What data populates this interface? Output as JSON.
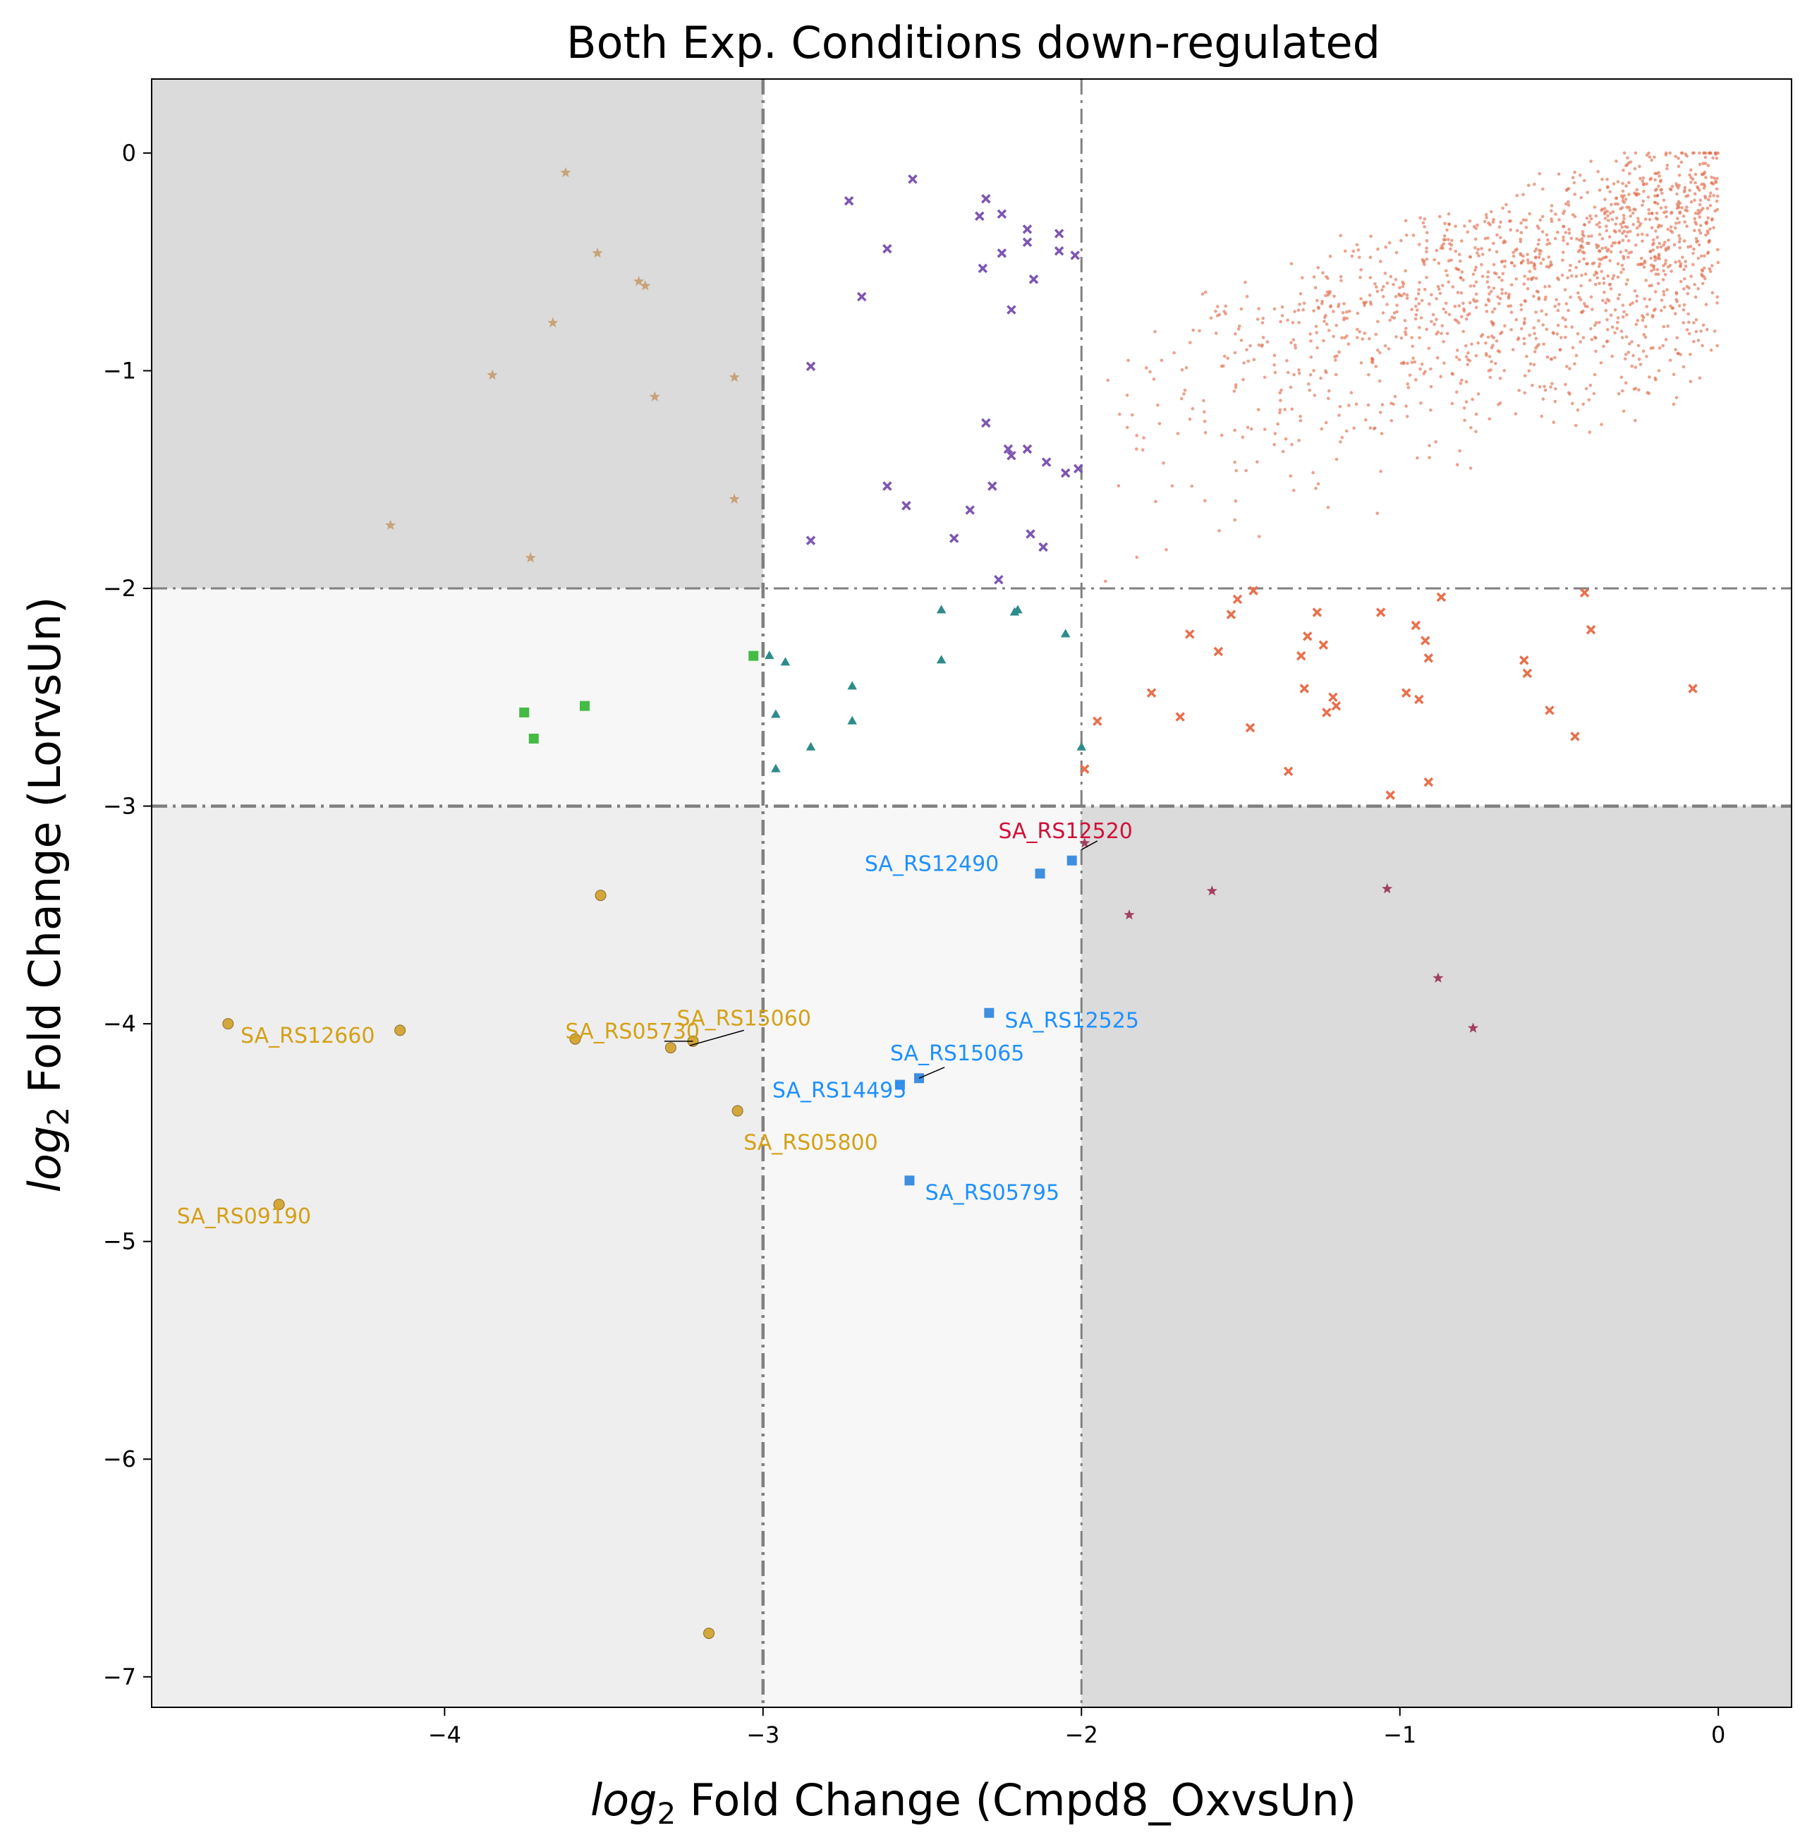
{
  "chart_data": {
    "type": "scatter",
    "title": "Both Exp. Conditions down-regulated",
    "xlabel_prefix": "log",
    "xlabel_sub": "2",
    "xlabel_rest": " Fold Change (Cmpd8_OxvsUn)",
    "ylabel_prefix": "log",
    "ylabel_sub": "2",
    "ylabel_rest": " Fold Change (LorvsUn)",
    "xlim": [
      -4.92,
      0.23
    ],
    "ylim": [
      -7.14,
      0.34
    ],
    "xticks": [
      -4,
      -3,
      -2,
      -1,
      0
    ],
    "yticks": [
      0,
      -1,
      -2,
      -3,
      -4,
      -5,
      -6,
      -7
    ],
    "grid": false,
    "legend": "none",
    "thresholds": {
      "x_outer": -3,
      "x_inner": -2,
      "y_outer": -3,
      "y_inner": -2
    },
    "colors": {
      "region_dark": "#dbdbdb",
      "region_mid": "#eeeeee",
      "region_light": "#f7f7f7",
      "threshold_line": "#808080",
      "background_dots": "#e07050",
      "x_markers": "#e8704c",
      "purple_x": "#7d55b2",
      "teal_tri": "#2e8b8b",
      "green_sq": "#44bb44",
      "tan_star": "#c9a27a",
      "maroon_star": "#a04060",
      "gold_circle": "#d4a73a",
      "blue_sq": "#3f8fe0",
      "red_label": "#d0103a",
      "gold_label": "#d4a017",
      "blue_label": "#1e90ff"
    },
    "series": [
      {
        "marker": "x",
        "color": "#e8704c",
        "points": [
          [
            -1.99,
            -2.83
          ],
          [
            -1.95,
            -2.61
          ],
          [
            -1.78,
            -2.48
          ],
          [
            -1.69,
            -2.59
          ],
          [
            -1.66,
            -2.21
          ],
          [
            -1.57,
            -2.29
          ],
          [
            -1.53,
            -2.12
          ],
          [
            -1.51,
            -2.05
          ],
          [
            -1.47,
            -2.64
          ],
          [
            -1.46,
            -2.01
          ],
          [
            -1.35,
            -2.84
          ],
          [
            -1.31,
            -2.31
          ],
          [
            -1.3,
            -2.46
          ],
          [
            -1.29,
            -2.22
          ],
          [
            -1.26,
            -2.11
          ],
          [
            -1.24,
            -2.26
          ],
          [
            -1.23,
            -2.57
          ],
          [
            -1.21,
            -2.5
          ],
          [
            -1.2,
            -2.54
          ],
          [
            -1.06,
            -2.11
          ],
          [
            -1.03,
            -2.95
          ],
          [
            -0.98,
            -2.48
          ],
          [
            -0.95,
            -2.17
          ],
          [
            -0.94,
            -2.51
          ],
          [
            -0.92,
            -2.24
          ],
          [
            -0.91,
            -2.32
          ],
          [
            -0.91,
            -2.89
          ],
          [
            -0.87,
            -2.04
          ],
          [
            -0.61,
            -2.33
          ],
          [
            -0.6,
            -2.39
          ],
          [
            -0.53,
            -2.56
          ],
          [
            -0.45,
            -2.68
          ],
          [
            -0.42,
            -2.02
          ],
          [
            -0.4,
            -2.19
          ],
          [
            -0.08,
            -2.46
          ]
        ]
      },
      {
        "marker": "x",
        "color": "#7d55b2",
        "points": [
          [
            -2.73,
            -0.22
          ],
          [
            -2.53,
            -0.12
          ],
          [
            -2.61,
            -0.44
          ],
          [
            -2.69,
            -0.66
          ],
          [
            -2.85,
            -0.98
          ],
          [
            -2.3,
            -0.21
          ],
          [
            -2.32,
            -0.29
          ],
          [
            -2.25,
            -0.28
          ],
          [
            -2.25,
            -0.46
          ],
          [
            -2.17,
            -0.35
          ],
          [
            -2.17,
            -0.41
          ],
          [
            -2.07,
            -0.37
          ],
          [
            -2.07,
            -0.45
          ],
          [
            -2.02,
            -0.47
          ],
          [
            -2.31,
            -0.53
          ],
          [
            -2.15,
            -0.58
          ],
          [
            -2.22,
            -0.72
          ],
          [
            -2.3,
            -1.24
          ],
          [
            -2.23,
            -1.36
          ],
          [
            -2.22,
            -1.39
          ],
          [
            -2.17,
            -1.36
          ],
          [
            -2.11,
            -1.42
          ],
          [
            -2.05,
            -1.47
          ],
          [
            -2.01,
            -1.45
          ],
          [
            -2.28,
            -1.53
          ],
          [
            -2.61,
            -1.53
          ],
          [
            -2.55,
            -1.62
          ],
          [
            -2.35,
            -1.64
          ],
          [
            -2.4,
            -1.77
          ],
          [
            -2.16,
            -1.75
          ],
          [
            -2.12,
            -1.81
          ],
          [
            -2.85,
            -1.78
          ],
          [
            -2.26,
            -1.96
          ]
        ]
      },
      {
        "marker": "triangle",
        "color": "#2e8b8b",
        "points": [
          [
            -2.98,
            -2.31
          ],
          [
            -2.93,
            -2.34
          ],
          [
            -2.96,
            -2.58
          ],
          [
            -2.96,
            -2.83
          ],
          [
            -2.85,
            -2.73
          ],
          [
            -2.72,
            -2.45
          ],
          [
            -2.72,
            -2.61
          ],
          [
            -2.44,
            -2.1
          ],
          [
            -2.44,
            -2.33
          ],
          [
            -2.21,
            -2.11
          ],
          [
            -2.2,
            -2.1
          ],
          [
            -2.05,
            -2.21
          ],
          [
            -2.0,
            -2.73
          ]
        ]
      },
      {
        "marker": "square",
        "color": "#44bb44",
        "points": [
          [
            -3.03,
            -2.31
          ],
          [
            -3.75,
            -2.57
          ],
          [
            -3.72,
            -2.69
          ],
          [
            -3.56,
            -2.54
          ]
        ]
      },
      {
        "marker": "star",
        "color": "#c9a27a",
        "points": [
          [
            -3.62,
            -0.09
          ],
          [
            -3.52,
            -0.46
          ],
          [
            -3.39,
            -0.59
          ],
          [
            -3.37,
            -0.61
          ],
          [
            -3.66,
            -0.78
          ],
          [
            -3.85,
            -1.02
          ],
          [
            -3.09,
            -1.03
          ],
          [
            -3.34,
            -1.12
          ],
          [
            -3.09,
            -1.59
          ],
          [
            -4.17,
            -1.71
          ],
          [
            -3.73,
            -1.86
          ]
        ]
      },
      {
        "marker": "star",
        "color": "#a04060",
        "points": [
          [
            -1.99,
            -3.17
          ],
          [
            -1.85,
            -3.5
          ],
          [
            -1.59,
            -3.39
          ],
          [
            -1.04,
            -3.38
          ],
          [
            -0.88,
            -3.79
          ],
          [
            -0.77,
            -4.02
          ]
        ]
      },
      {
        "marker": "circle",
        "color": "#d4a73a",
        "points": [
          [
            -3.51,
            -3.41
          ],
          [
            -4.68,
            -4.0
          ],
          [
            -4.14,
            -4.03
          ],
          [
            -3.59,
            -4.07
          ],
          [
            -3.29,
            -4.11
          ],
          [
            -3.22,
            -4.08
          ],
          [
            -3.08,
            -4.4
          ],
          [
            -4.52,
            -4.83
          ],
          [
            -3.17,
            -6.8
          ]
        ]
      },
      {
        "marker": "square",
        "color": "#3f8fe0",
        "points": [
          [
            -2.03,
            -3.25
          ],
          [
            -2.13,
            -3.31
          ],
          [
            -2.29,
            -3.95
          ],
          [
            -2.51,
            -4.25
          ],
          [
            -2.57,
            -4.28
          ],
          [
            -2.54,
            -4.72
          ]
        ]
      }
    ],
    "annotations": [
      {
        "text": "SA_RS12520",
        "x": -2.05,
        "y": -3.12,
        "color": "#d0103a"
      },
      {
        "text": "SA_RS12490",
        "x": -2.47,
        "y": -3.27,
        "color": "#1e90ff"
      },
      {
        "text": "SA_RS12525",
        "x": -2.03,
        "y": -3.99,
        "color": "#1e90ff"
      },
      {
        "text": "SA_RS15065",
        "x": -2.39,
        "y": -4.14,
        "color": "#1e90ff"
      },
      {
        "text": "SA_RS14495",
        "x": -2.76,
        "y": -4.31,
        "color": "#1e90ff"
      },
      {
        "text": "SA_RS05795",
        "x": -2.28,
        "y": -4.78,
        "color": "#1e90ff"
      },
      {
        "text": "SA_RS15060",
        "x": -3.06,
        "y": -3.98,
        "color": "#d4a017"
      },
      {
        "text": "SA_RS05730",
        "x": -3.41,
        "y": -4.04,
        "color": "#d4a017"
      },
      {
        "text": "SA_RS12660",
        "x": -4.43,
        "y": -4.06,
        "color": "#d4a017"
      },
      {
        "text": "SA_RS05800",
        "x": -2.85,
        "y": -4.55,
        "color": "#d4a017"
      },
      {
        "text": "SA_RS09190",
        "x": -4.63,
        "y": -4.89,
        "color": "#d4a017"
      }
    ],
    "connectors": [
      {
        "from": [
          -3.31,
          -4.08
        ],
        "to": [
          -3.22,
          -4.08
        ]
      },
      {
        "from": [
          -3.23,
          -4.1
        ],
        "to": [
          -3.06,
          -4.03
        ]
      },
      {
        "from": [
          -2.51,
          -4.25
        ],
        "to": [
          -2.43,
          -4.2
        ]
      },
      {
        "from": [
          -2.0,
          -3.2
        ],
        "to": [
          -1.95,
          -3.16
        ]
      }
    ],
    "background_cloud": {
      "count": 1500,
      "color": "#e07050",
      "x_range": [
        -2.0,
        0.0
      ],
      "y_range": [
        -2.0,
        0.0
      ]
    }
  }
}
